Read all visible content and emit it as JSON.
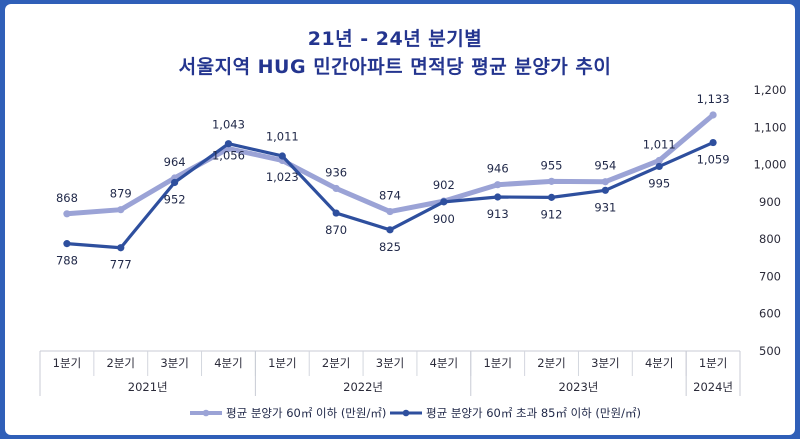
{
  "title": {
    "line1": "21년 - 24년 분기별",
    "line2": "서울지역 HUG 민간아파트 면적당 평균 분양가 추이"
  },
  "colors": {
    "background": "#2f5fb8",
    "title": "#24358f",
    "series_small": "#9ba3d6",
    "series_large": "#2e4f9e"
  },
  "chart_data": {
    "type": "line",
    "categories": [
      "1분기",
      "2분기",
      "3분기",
      "4분기",
      "1분기",
      "2분기",
      "3분기",
      "4분기",
      "1분기",
      "2분기",
      "3분기",
      "4분기",
      "1분기"
    ],
    "groups": [
      {
        "label": "2021년",
        "start": 0,
        "end": 3
      },
      {
        "label": "2022년",
        "start": 4,
        "end": 7
      },
      {
        "label": "2023년",
        "start": 8,
        "end": 11
      },
      {
        "label": "2024년",
        "start": 12,
        "end": 12
      }
    ],
    "series": [
      {
        "name": "평균 분양가 60㎡ 이하 (만원/㎡)",
        "values": [
          868,
          879,
          964,
          1043,
          1011,
          936,
          874,
          902,
          946,
          955,
          954,
          1011,
          1133
        ],
        "labels": [
          "868",
          "879",
          "964",
          "1,043",
          "1,011",
          "936",
          "874",
          "902",
          "946",
          "955",
          "954",
          "1,011",
          "1,133"
        ],
        "label_pos": [
          "above",
          "above",
          "above",
          "above",
          "above",
          "above",
          "above",
          "above",
          "above",
          "above",
          "above",
          "above",
          "above"
        ]
      },
      {
        "name": "평균 분양가 60㎡ 초과 85㎡ 이하 (만원/㎡)",
        "values": [
          788,
          777,
          952,
          1056,
          1023,
          870,
          825,
          900,
          913,
          912,
          931,
          995,
          1059
        ],
        "labels": [
          "788",
          "777",
          "952",
          "1,056",
          "1,023",
          "870",
          "825",
          "900",
          "913",
          "912",
          "931",
          "995",
          "1,059"
        ],
        "label_pos": [
          "below",
          "below",
          "below",
          "below",
          "below",
          "below",
          "below",
          "below",
          "below",
          "below",
          "below",
          "below",
          "below"
        ]
      }
    ],
    "y_ticks": [
      500,
      600,
      700,
      800,
      900,
      1000,
      1100,
      1200
    ],
    "y_tick_labels": [
      "500",
      "600",
      "700",
      "800",
      "900",
      "1,000",
      "1,100",
      "1,200"
    ],
    "ylim": [
      500,
      1200
    ],
    "y_axis_side": "right",
    "grid": false,
    "legend": "bottom"
  }
}
